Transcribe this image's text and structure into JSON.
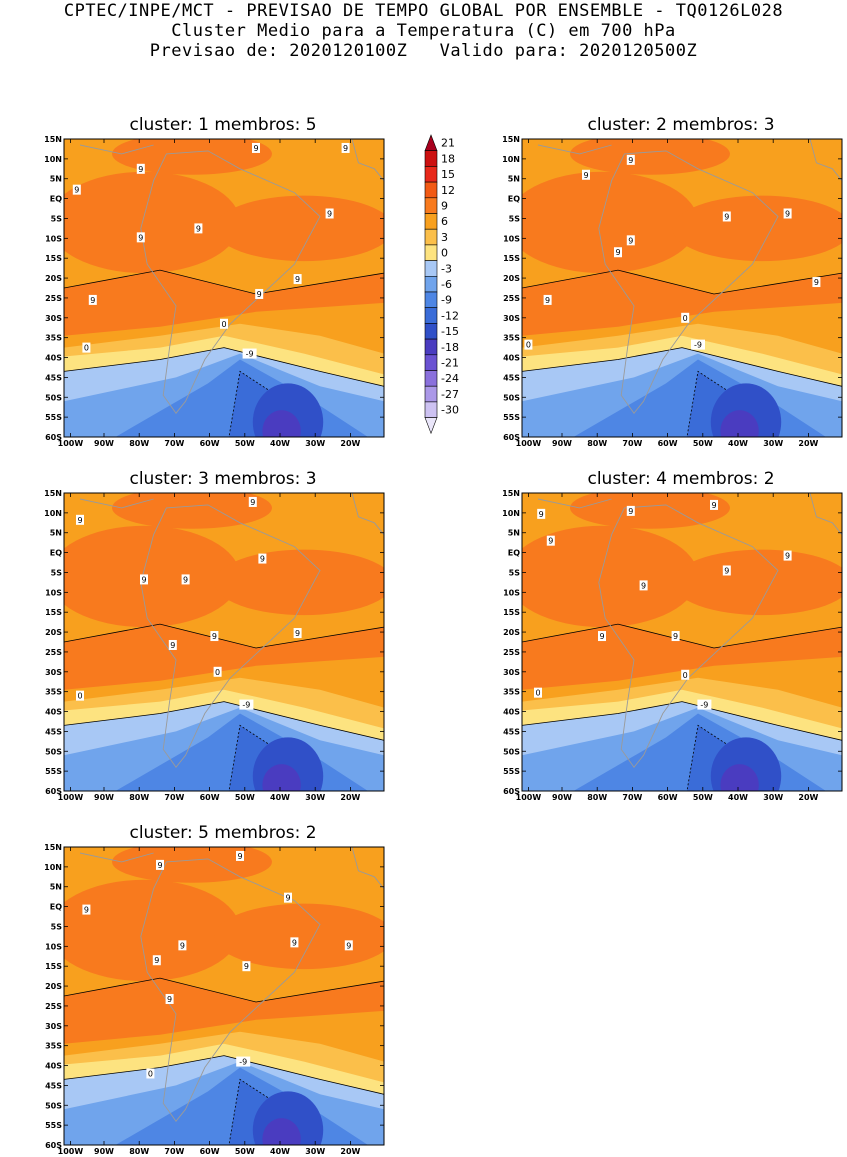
{
  "header": {
    "line1": "CPTEC/INPE/MCT - PREVISAO DE TEMPO GLOBAL POR ENSEMBLE - TQ0126L028",
    "line2": "Cluster Medio para a Temperatura (C) em 700 hPa",
    "line3": "Previsao de: 2020120100Z   Valido para: 2020120500Z"
  },
  "axes": {
    "lat_labels": [
      "15N",
      "10N",
      "5N",
      "EQ",
      "5S",
      "10S",
      "15S",
      "20S",
      "25S",
      "30S",
      "35S",
      "40S",
      "45S",
      "50S",
      "55S",
      "60S"
    ],
    "lon_labels": [
      "100W",
      "90W",
      "80W",
      "70W",
      "60W",
      "50W",
      "40W",
      "30W",
      "20W"
    ]
  },
  "colorbar": {
    "levels": [
      "21",
      "18",
      "15",
      "12",
      "9",
      "6",
      "3",
      "0",
      "-3",
      "-6",
      "-9",
      "-12",
      "-15",
      "-18",
      "-21",
      "-24",
      "-27",
      "-30"
    ],
    "colors": {
      "above_21": "#a8001e",
      "18_21": "#cc1010",
      "15_18": "#e8281a",
      "12_15": "#f25a14",
      "9_12": "#f87a1e",
      "6_9": "#f8a01e",
      "3_6": "#fbbf4a",
      "0_3": "#fde380",
      "m3_0": "#a8c8f5",
      "m6_m3": "#70a4ec",
      "m9_m6": "#4e86e4",
      "m12_m9": "#3a6cd8",
      "m15_m12": "#3050c8",
      "m18_m15": "#4a3cc0",
      "m21_m18": "#6a52d2",
      "m24_m21": "#8a70dc",
      "m27_m24": "#ab98e8",
      "m30_m27": "#cdc2f2",
      "below_m30": "#eae6fa"
    }
  },
  "panels": [
    {
      "title": "cluster: 1   membros: 5",
      "labels": [
        "9",
        "9",
        "9",
        "9",
        "9",
        "9",
        "9",
        "9",
        "9",
        "9",
        "0",
        "0",
        "-9"
      ]
    },
    {
      "title": "cluster: 2   membros: 3",
      "labels": [
        "9",
        "9",
        "9",
        "9",
        "9",
        "9",
        "9",
        "9",
        "0",
        "0",
        "-9"
      ]
    },
    {
      "title": "cluster: 3   membros: 3",
      "labels": [
        "9",
        "9",
        "9",
        "9",
        "9",
        "9",
        "9",
        "9",
        "0",
        "0",
        "-9"
      ]
    },
    {
      "title": "cluster: 4   membros: 2",
      "labels": [
        "9",
        "9",
        "9",
        "9",
        "9",
        "9",
        "9",
        "9",
        "9",
        "0",
        "0",
        "-9"
      ]
    },
    {
      "title": "cluster: 5   membros: 2",
      "labels": [
        "9",
        "9",
        "9",
        "9",
        "9",
        "9",
        "9",
        "9",
        "9",
        "9",
        "0",
        "-9"
      ]
    }
  ]
}
